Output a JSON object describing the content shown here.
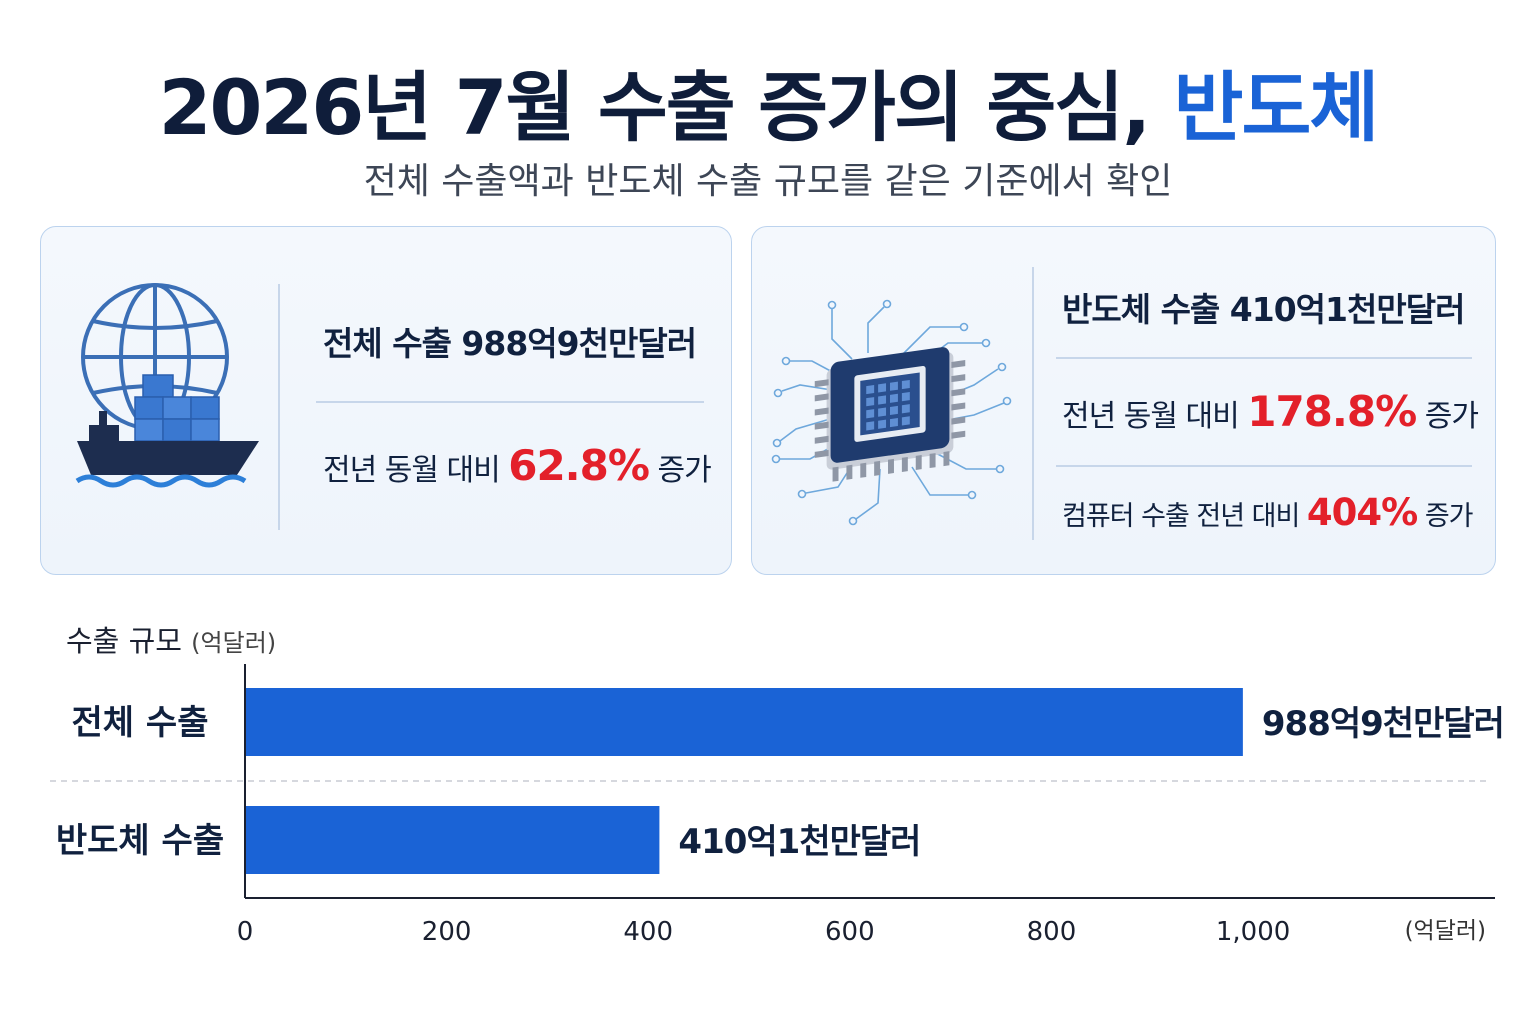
{
  "title": {
    "main": "2026년 7월 수출 증가의 중심,",
    "accent": "반도체"
  },
  "subtitle": "전체 수출액과 반도체 수출 규모를 같은 기준에서 확인",
  "cards": {
    "total": {
      "icon": "cargo-ship-globe-icon",
      "headline": "전체 수출 988억9천만달러",
      "yoy_prefix": "전년 동월 대비",
      "yoy_value": "62.8%",
      "yoy_suffix": "증가"
    },
    "semi": {
      "icon": "microchip-icon",
      "headline": "반도체 수출 410억1천만달러",
      "yoy_prefix": "전년 동월 대비",
      "yoy_value": "178.8%",
      "yoy_suffix": "증가",
      "computer_prefix": "컴퓨터 수출 전년 대비",
      "computer_value": "404%",
      "computer_suffix": "증가"
    }
  },
  "colors": {
    "accent": "#1a63d6",
    "bar": "#1a63d6",
    "highlight": "#e3202a",
    "navy": "#0f1d3a"
  },
  "chart_label": {
    "title": "수출 규모",
    "unit": "(억달러)"
  },
  "chart_data": {
    "type": "bar",
    "orientation": "horizontal",
    "categories": [
      "전체 수출",
      "반도체 수출"
    ],
    "values": [
      988.9,
      410.1
    ],
    "data_labels": [
      "988억9천만달러",
      "410억1천만달러"
    ],
    "xlim": [
      0,
      1240
    ],
    "xticks": [
      0,
      200,
      400,
      600,
      800,
      1000
    ],
    "xtick_labels": [
      "0",
      "200",
      "400",
      "600",
      "800",
      "1,000"
    ],
    "x_unit_label": "(억달러)",
    "ylabel": "수출 규모",
    "grid": false
  }
}
